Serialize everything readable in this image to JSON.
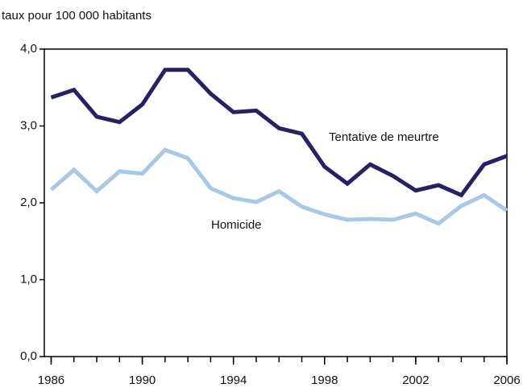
{
  "chart_data": {
    "type": "line",
    "y_axis_label": "taux pour 100 000 habitants",
    "x": [
      1986,
      1987,
      1988,
      1989,
      1990,
      1991,
      1992,
      1993,
      1994,
      1995,
      1996,
      1997,
      1998,
      1999,
      2000,
      2001,
      2002,
      2003,
      2004,
      2005,
      2006
    ],
    "series": [
      {
        "name": "Tentative de meurtre",
        "color": "#262262",
        "values": [
          3.37,
          3.47,
          3.12,
          3.05,
          3.28,
          3.73,
          3.73,
          3.42,
          3.18,
          3.2,
          2.97,
          2.9,
          2.47,
          2.25,
          2.5,
          2.35,
          2.16,
          2.23,
          2.1,
          2.5,
          2.61
        ]
      },
      {
        "name": "Homicide",
        "color": "#a8c8e8",
        "values": [
          2.17,
          2.43,
          2.15,
          2.41,
          2.38,
          2.69,
          2.58,
          2.19,
          2.06,
          2.01,
          2.15,
          1.95,
          1.85,
          1.78,
          1.79,
          1.78,
          1.86,
          1.73,
          1.96,
          2.1,
          1.9
        ]
      }
    ],
    "xlim": [
      1985.7,
      2006
    ],
    "xticks": [
      1986,
      1990,
      1994,
      1998,
      2002,
      2006
    ],
    "xminorticks": [
      1986,
      1987,
      1988,
      1989,
      1990,
      1991,
      1992,
      1993,
      1994,
      1995,
      1996,
      1997,
      1998,
      1999,
      2000,
      2001,
      2002,
      2003,
      2004,
      2005,
      2006
    ],
    "ylim": [
      0,
      4
    ],
    "yticks": [
      {
        "value": 0,
        "label": "0,0"
      },
      {
        "value": 1,
        "label": "1,0"
      },
      {
        "value": 2,
        "label": "2,0"
      },
      {
        "value": 3,
        "label": "3,0"
      },
      {
        "value": 4,
        "label": "4,0"
      }
    ]
  }
}
